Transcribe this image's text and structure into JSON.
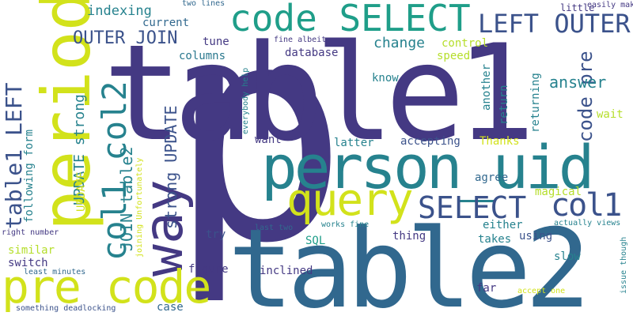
{
  "words": [
    {
      "text": "p",
      "color": "#443983"
    },
    {
      "text": "table1",
      "color": "#443983"
    },
    {
      "text": "table2",
      "color": "#31688e"
    },
    {
      "text": "person_uid",
      "color": "#26828e"
    },
    {
      "text": "period",
      "color": "#d2e21b"
    },
    {
      "text": "code SELECT",
      "color": "#1f9e89"
    },
    {
      "text": "way",
      "color": "#443983"
    },
    {
      "text": "pre code",
      "color": "#d2e21b"
    },
    {
      "text": "query",
      "color": "#d2e21b"
    },
    {
      "text": "SELECT",
      "color": "#3b528b"
    },
    {
      "text": "col1",
      "color": "#3b528b"
    },
    {
      "text": "col1 col2",
      "color": "#26828e"
    },
    {
      "text": "table1 LEFT",
      "color": "#3b528b"
    },
    {
      "text": "LEFT OUTER",
      "color": "#3b528b"
    },
    {
      "text": "OUTER JOIN",
      "color": "#3b528b"
    },
    {
      "text": "code pre",
      "color": "#3b528b"
    },
    {
      "text": "answer",
      "color": "#26828e"
    },
    {
      "text": "JOIN table2",
      "color": "#26828e"
    },
    {
      "text": "UPDATE strong",
      "color": "#26828e"
    },
    {
      "text": "strong UPDATE",
      "color": "#3b528b"
    },
    {
      "text": "indexing",
      "color": "#26828e"
    },
    {
      "text": "change",
      "color": "#26828e"
    },
    {
      "text": "current",
      "color": "#31688e"
    },
    {
      "text": "control",
      "color": "#b5de2b"
    },
    {
      "text": "tune",
      "color": "#443983"
    },
    {
      "text": "database",
      "color": "#443983"
    },
    {
      "text": "speed",
      "color": "#b5de2b"
    },
    {
      "text": "columns",
      "color": "#2a788e"
    },
    {
      "text": "another",
      "color": "#26828e"
    },
    {
      "text": "return",
      "color": "#26828e"
    },
    {
      "text": "returning",
      "color": "#26828e"
    },
    {
      "text": "know",
      "color": "#26828e"
    },
    {
      "text": "wait",
      "color": "#b5de2b"
    },
    {
      "text": "want",
      "color": "#443983"
    },
    {
      "text": "latter",
      "color": "#26828e"
    },
    {
      "text": "accepting",
      "color": "#3b528b"
    },
    {
      "text": "Thanks",
      "color": "#d2e21b"
    },
    {
      "text": "agree",
      "color": "#31688e"
    },
    {
      "text": "magical",
      "color": "#b5de2b"
    },
    {
      "text": "following form",
      "color": "#26828e"
    },
    {
      "text": "UPDATE",
      "color": "#d2e21b"
    },
    {
      "text": "try",
      "color": "#3b528b"
    },
    {
      "text": "SQL",
      "color": "#1f9e89"
    },
    {
      "text": "thing",
      "color": "#443983"
    },
    {
      "text": "either",
      "color": "#26828e"
    },
    {
      "text": "takes",
      "color": "#26828e"
    },
    {
      "text": "using",
      "color": "#3b528b"
    },
    {
      "text": "similar",
      "color": "#b5de2b"
    },
    {
      "text": "switch",
      "color": "#443983"
    },
    {
      "text": "slow",
      "color": "#26828e"
    },
    {
      "text": "figure",
      "color": "#443983"
    },
    {
      "text": "inclined",
      "color": "#443983"
    },
    {
      "text": "far",
      "color": "#443983"
    },
    {
      "text": "case",
      "color": "#31688e"
    },
    {
      "text": "two lines",
      "color": "#31688e"
    },
    {
      "text": "little",
      "color": "#443983"
    },
    {
      "text": "easily make",
      "color": "#443983"
    },
    {
      "text": "fine albeit",
      "color": "#443983"
    },
    {
      "text": "everybody help",
      "color": "#26828e"
    },
    {
      "text": "joining Unfortunately",
      "color": "#d2e21b"
    },
    {
      "text": "right number",
      "color": "#443983"
    },
    {
      "text": "least minutes",
      "color": "#31688e"
    },
    {
      "text": "last two",
      "color": "#31688e"
    },
    {
      "text": "works fine",
      "color": "#26828e"
    },
    {
      "text": "actually views",
      "color": "#26828e"
    },
    {
      "text": "something deadlocking",
      "color": "#3b528b"
    },
    {
      "text": "accept one",
      "color": "#d2e21b"
    },
    {
      "text": "issue though",
      "color": "#26828e"
    }
  ]
}
